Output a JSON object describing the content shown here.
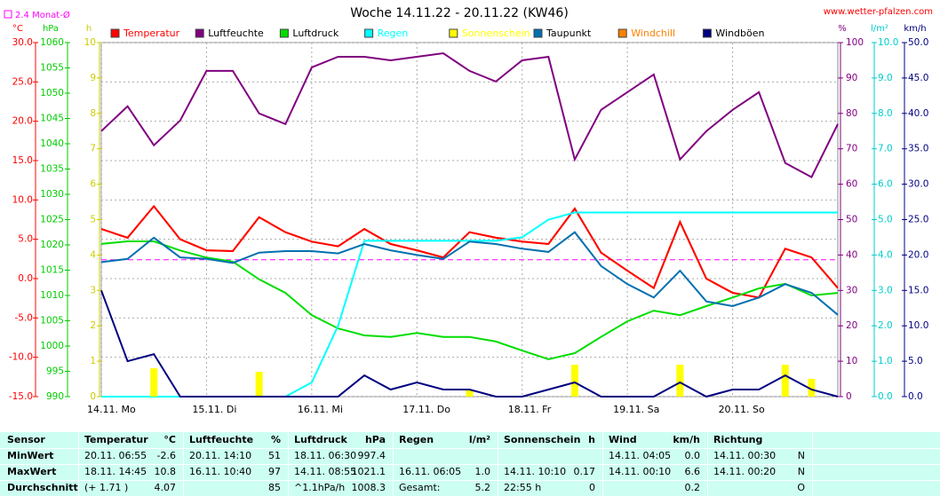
{
  "site": "www.wetter-pfalzen.com",
  "chart_data": {
    "type": "line",
    "title": "Woche 14.11.22 - 20.11.22 (KW46)",
    "reference": {
      "label": "2.4 Monat-Ø",
      "value": 2.4,
      "axis": "°C",
      "color": "#ff00ff"
    },
    "xlim": [
      0,
      168
    ],
    "xticks": [
      {
        "value": 0,
        "label": "14.11. Mo"
      },
      {
        "value": 24,
        "label": "15.11. Di"
      },
      {
        "value": 48,
        "label": "16.11. Mi"
      },
      {
        "value": 72,
        "label": "17.11. Do"
      },
      {
        "value": 96,
        "label": "18.11. Fr"
      },
      {
        "value": 120,
        "label": "19.11. Sa"
      },
      {
        "value": 144,
        "label": "20.11. So"
      }
    ],
    "grid": true,
    "axes": [
      {
        "unit": "°C",
        "color": "#ff0000",
        "ylim": [
          -15,
          30
        ],
        "yticks": [
          {
            "value": -15,
            "label": "-15.0"
          },
          {
            "value": -10,
            "label": "-10.0"
          },
          {
            "value": -5,
            "label": "-5.0"
          },
          {
            "value": 0,
            "label": "0.0"
          },
          {
            "value": 5,
            "label": "5.0"
          },
          {
            "value": 10,
            "label": "10.0"
          },
          {
            "value": 15,
            "label": "15.0"
          },
          {
            "value": 20,
            "label": "20.0"
          },
          {
            "value": 25,
            "label": "25.0"
          },
          {
            "value": 30,
            "label": "30.0"
          }
        ]
      },
      {
        "unit": "hPa",
        "color": "#00cc00",
        "ylim": [
          990,
          1060
        ],
        "yticks": [
          990,
          995,
          1000,
          1005,
          1010,
          1015,
          1020,
          1025,
          1030,
          1035,
          1040,
          1045,
          1050,
          1055,
          1060
        ]
      },
      {
        "unit": "h",
        "color": "#cccc00",
        "ylim": [
          0,
          10
        ],
        "yticks": [
          0,
          1,
          2,
          3,
          4,
          5,
          6,
          7,
          8,
          9,
          10
        ]
      },
      {
        "unit": "%",
        "color": "#800080",
        "ylim": [
          0,
          100
        ],
        "yticks": [
          0,
          10,
          20,
          30,
          40,
          50,
          60,
          70,
          80,
          90,
          100
        ]
      },
      {
        "unit": "l/m²",
        "color": "#00cccc",
        "ylim": [
          0,
          10
        ],
        "yticks": [
          {
            "value": 0,
            "label": "0.0"
          },
          {
            "value": 1,
            "label": "1.0"
          },
          {
            "value": 2,
            "label": "2.0"
          },
          {
            "value": 3,
            "label": "3.0"
          },
          {
            "value": 4,
            "label": "4.0"
          },
          {
            "value": 5,
            "label": "5.0"
          },
          {
            "value": 6,
            "label": "6.0"
          },
          {
            "value": 7,
            "label": "7.0"
          },
          {
            "value": 8,
            "label": "8.0"
          },
          {
            "value": 9,
            "label": "9.0"
          },
          {
            "value": 10,
            "label": "10.0"
          }
        ]
      },
      {
        "unit": "km/h",
        "color": "#000080",
        "ylim": [
          0,
          50
        ],
        "yticks": [
          {
            "value": 0,
            "label": "0.0"
          },
          {
            "value": 5,
            "label": "5.0"
          },
          {
            "value": 10,
            "label": "10.0"
          },
          {
            "value": 15,
            "label": "15.0"
          },
          {
            "value": 20,
            "label": "20.0"
          },
          {
            "value": 25,
            "label": "25.0"
          },
          {
            "value": 30,
            "label": "30.0"
          },
          {
            "value": 35,
            "label": "35.0"
          },
          {
            "value": 40,
            "label": "40.0"
          },
          {
            "value": 45,
            "label": "45.0"
          },
          {
            "value": 50,
            "label": "50.0"
          }
        ]
      }
    ],
    "x": [
      0,
      6,
      12,
      18,
      24,
      30,
      36,
      42,
      48,
      54,
      60,
      66,
      72,
      78,
      84,
      90,
      96,
      102,
      108,
      114,
      120,
      126,
      132,
      138,
      144,
      150,
      156,
      162,
      168
    ],
    "series": [
      {
        "name": "Temperatur",
        "color": "#ff0000",
        "axis": "°C",
        "values": [
          6.3,
          5.2,
          9.2,
          5.0,
          3.6,
          3.5,
          7.8,
          5.9,
          4.7,
          4.1,
          6.3,
          4.4,
          3.6,
          2.7,
          5.9,
          5.2,
          4.7,
          4.4,
          8.9,
          3.3,
          1.0,
          -1.2,
          7.2,
          0.0,
          -1.8,
          -2.4,
          3.8,
          2.7,
          -1.2
        ]
      },
      {
        "name": "Luftfeuchte",
        "color": "#800080",
        "axis": "%",
        "values": [
          75,
          82,
          71,
          78,
          92,
          92,
          80,
          77,
          93,
          96,
          96,
          95,
          96,
          97,
          92,
          89,
          95,
          96,
          67,
          81,
          86,
          91,
          67,
          75,
          81,
          86,
          66,
          62,
          77
        ]
      },
      {
        "name": "Luftdruck",
        "color": "#00dd00",
        "axis": "hPa",
        "values": [
          1020.2,
          1020.7,
          1020.7,
          1018.9,
          1017.5,
          1016.7,
          1013.2,
          1010.5,
          1006.1,
          1003.5,
          1002.1,
          1001.8,
          1002.6,
          1001.8,
          1001.8,
          1000.9,
          999.1,
          997.4,
          998.6,
          1001.8,
          1004.9,
          1007.0,
          1006.1,
          1007.9,
          1009.6,
          1011.4,
          1012.3,
          1010.0,
          1010.5
        ]
      },
      {
        "name": "Regen",
        "color": "#00ffff",
        "axis": "l/m²",
        "values": [
          0,
          0,
          0,
          0,
          0,
          0,
          0,
          0,
          0.4,
          2.0,
          4.4,
          4.4,
          4.4,
          4.4,
          4.4,
          4.4,
          4.5,
          5.0,
          5.2,
          5.2,
          5.2,
          5.2,
          5.2,
          5.2,
          5.2,
          5.2,
          5.2,
          5.2,
          5.2
        ]
      },
      {
        "name": "Sonnenschein",
        "color": "#ffff00",
        "axis": "h",
        "style": "bar",
        "values": [
          0,
          0,
          0.8,
          0,
          0,
          0,
          0.7,
          0,
          0,
          0,
          0,
          0,
          0,
          0,
          0.2,
          0,
          0,
          0,
          0.9,
          0,
          0,
          0,
          0.9,
          0,
          0,
          0,
          0.9,
          0.5,
          0
        ]
      },
      {
        "name": "Taupunkt",
        "color": "#0070b0",
        "axis": "°C",
        "values": [
          2.1,
          2.5,
          5.2,
          2.7,
          2.5,
          2.0,
          3.3,
          3.5,
          3.5,
          3.2,
          4.4,
          3.6,
          3.0,
          2.5,
          4.7,
          4.4,
          3.8,
          3.4,
          5.9,
          1.6,
          -0.7,
          -2.4,
          1.0,
          -2.9,
          -3.5,
          -2.4,
          -0.7,
          -1.8,
          -4.6
        ]
      },
      {
        "name": "Windchill",
        "color": "#ff8000",
        "axis": "°C",
        "values": [
          6.3,
          5.2,
          9.2,
          5.0,
          3.6,
          3.5,
          7.8,
          5.9,
          4.7,
          4.1,
          6.3,
          4.4,
          3.6,
          2.7,
          5.9,
          5.2,
          4.7,
          4.4,
          8.9,
          3.3,
          1.0,
          -1.2,
          7.2,
          0.0,
          -1.8,
          -2.4,
          3.8,
          2.7,
          -1.2
        ]
      },
      {
        "name": "Windböen",
        "color": "#000080",
        "axis": "km/h",
        "values": [
          15,
          5,
          6,
          0,
          0,
          0,
          0,
          0,
          0,
          0,
          3,
          1,
          2,
          1,
          1,
          0,
          0,
          1,
          2,
          0,
          0,
          0,
          2,
          0,
          1,
          1,
          3,
          1,
          0
        ]
      }
    ]
  },
  "table": {
    "rows": [
      [
        "Sensor",
        "Temperatur",
        "°C",
        "Luftfeuchte",
        "%",
        "Luftdruck",
        "hPa",
        "Regen",
        "l/m²",
        "Sonnenschein",
        "h",
        "Wind",
        "km/h",
        "Richtung",
        null
      ],
      [
        "MinWert",
        "20.11. 06:55",
        "-2.6",
        "20.11. 14:10",
        "51",
        "18.11. 06:30",
        "997.4",
        null,
        null,
        null,
        null,
        "14.11. 04:05",
        "0.0",
        "14.11. 00:30",
        "N"
      ],
      [
        "MaxWert",
        "18.11. 14:45",
        "10.8",
        "16.11. 10:40",
        "97",
        "14.11. 08:55",
        "1021.1",
        "16.11. 06:05",
        "1.0",
        "14.11. 10:10",
        "0.17",
        "14.11. 00:10",
        "6.6",
        "14.11. 00:20",
        "N"
      ],
      [
        "Durchschnitt",
        "(+ 1.71 )",
        "4.07",
        null,
        "85",
        "^1.1hPa/h",
        "1008.3",
        "Gesamt:",
        "5.2",
        "22:55 h",
        "0",
        null,
        "0.2",
        null,
        "O"
      ]
    ]
  }
}
